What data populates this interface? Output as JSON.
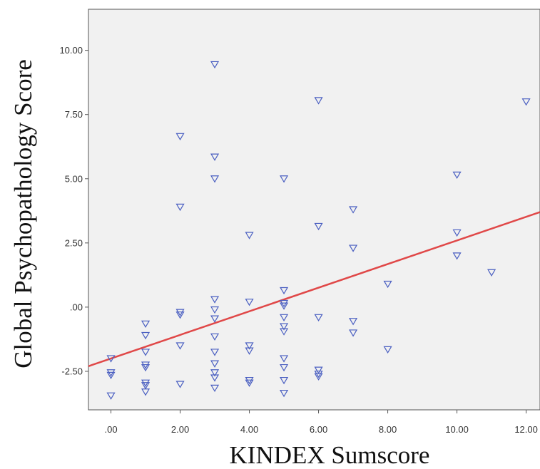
{
  "chart_data": {
    "type": "scatter",
    "title": "",
    "xlabel": "KINDEX Sumscore",
    "ylabel": "Global Psychopathology Score",
    "xlim": [
      -0.65,
      12.4
    ],
    "ylim": [
      -4.0,
      11.6
    ],
    "x_ticks": [
      {
        "value": 0,
        "label": ".00"
      },
      {
        "value": 2,
        "label": "2.00"
      },
      {
        "value": 4,
        "label": "4.00"
      },
      {
        "value": 6,
        "label": "6.00"
      },
      {
        "value": 8,
        "label": "8.00"
      },
      {
        "value": 10,
        "label": "10.00"
      },
      {
        "value": 12,
        "label": "12.00"
      }
    ],
    "y_ticks": [
      {
        "value": -2.5,
        "label": "-2.50"
      },
      {
        "value": 0,
        "label": ".00"
      },
      {
        "value": 2.5,
        "label": "2.50"
      },
      {
        "value": 5,
        "label": "5.00"
      },
      {
        "value": 7.5,
        "label": "7.50"
      },
      {
        "value": 10,
        "label": "10.00"
      }
    ],
    "grid": false,
    "marker": "triangle-down",
    "colors": {
      "points": "#4a5fc1",
      "fit_line": "#e04848",
      "plot_background": "#f1f1f1"
    },
    "series": [
      {
        "points": [
          {
            "x": 0,
            "y": -2.0
          },
          {
            "x": 0,
            "y": -2.55
          },
          {
            "x": 0,
            "y": -2.65
          },
          {
            "x": 0,
            "y": -3.45
          },
          {
            "x": 1,
            "y": -0.65
          },
          {
            "x": 1,
            "y": -1.1
          },
          {
            "x": 1,
            "y": -1.75
          },
          {
            "x": 1,
            "y": -2.25
          },
          {
            "x": 1,
            "y": -2.35
          },
          {
            "x": 1,
            "y": -2.95
          },
          {
            "x": 1,
            "y": -3.05
          },
          {
            "x": 1,
            "y": -3.3
          },
          {
            "x": 2,
            "y": 6.65
          },
          {
            "x": 2,
            "y": 3.9
          },
          {
            "x": 2,
            "y": -0.2
          },
          {
            "x": 2,
            "y": -0.3
          },
          {
            "x": 2,
            "y": -1.5
          },
          {
            "x": 2,
            "y": -3.0
          },
          {
            "x": 3,
            "y": 9.45
          },
          {
            "x": 3,
            "y": 5.85
          },
          {
            "x": 3,
            "y": 5.0
          },
          {
            "x": 3,
            "y": 0.3
          },
          {
            "x": 3,
            "y": -0.1
          },
          {
            "x": 3,
            "y": -0.45
          },
          {
            "x": 3,
            "y": -1.15
          },
          {
            "x": 3,
            "y": -1.75
          },
          {
            "x": 3,
            "y": -2.2
          },
          {
            "x": 3,
            "y": -2.55
          },
          {
            "x": 3,
            "y": -2.75
          },
          {
            "x": 3,
            "y": -3.15
          },
          {
            "x": 4,
            "y": 2.8
          },
          {
            "x": 4,
            "y": 0.2
          },
          {
            "x": 4,
            "y": -1.5
          },
          {
            "x": 4,
            "y": -1.7
          },
          {
            "x": 4,
            "y": -2.85
          },
          {
            "x": 4,
            "y": -2.95
          },
          {
            "x": 5,
            "y": 5.0
          },
          {
            "x": 5,
            "y": 0.65
          },
          {
            "x": 5,
            "y": 0.15
          },
          {
            "x": 5,
            "y": 0.05
          },
          {
            "x": 5,
            "y": -0.4
          },
          {
            "x": 5,
            "y": -0.75
          },
          {
            "x": 5,
            "y": -0.95
          },
          {
            "x": 5,
            "y": -2.0
          },
          {
            "x": 5,
            "y": -2.35
          },
          {
            "x": 5,
            "y": -2.85
          },
          {
            "x": 5,
            "y": -3.35
          },
          {
            "x": 6,
            "y": 8.05
          },
          {
            "x": 6,
            "y": 3.15
          },
          {
            "x": 6,
            "y": -0.4
          },
          {
            "x": 6,
            "y": -2.45
          },
          {
            "x": 6,
            "y": -2.6
          },
          {
            "x": 6,
            "y": -2.7
          },
          {
            "x": 7,
            "y": 3.8
          },
          {
            "x": 7,
            "y": 2.3
          },
          {
            "x": 7,
            "y": -0.55
          },
          {
            "x": 7,
            "y": -1.0
          },
          {
            "x": 8,
            "y": 0.9
          },
          {
            "x": 8,
            "y": -1.65
          },
          {
            "x": 10,
            "y": 5.15
          },
          {
            "x": 10,
            "y": 2.9
          },
          {
            "x": 10,
            "y": 2.0
          },
          {
            "x": 11,
            "y": 1.35
          },
          {
            "x": 12,
            "y": 8.0
          }
        ]
      }
    ],
    "fit_line": {
      "x": [
        -0.65,
        12.4
      ],
      "y": [
        -2.3,
        3.7
      ]
    }
  }
}
